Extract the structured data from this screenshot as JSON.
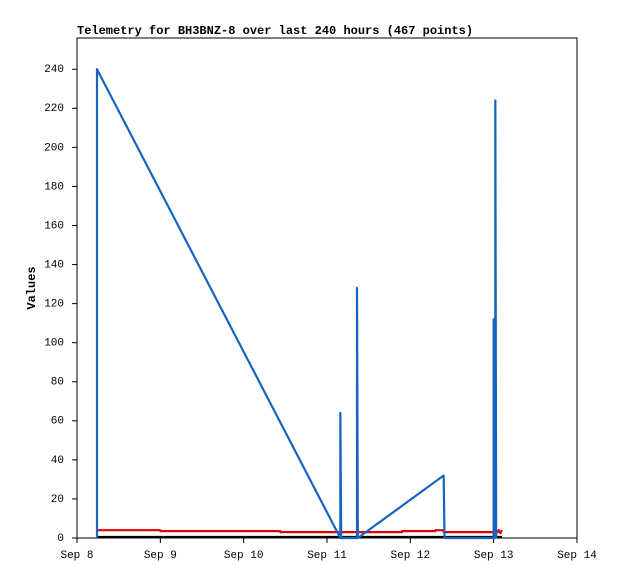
{
  "chart_data": {
    "type": "line",
    "title": "Telemetry for BH3BNZ-8 over last 240 hours (467 points)",
    "y_label": "Values",
    "xlim": [
      8,
      14
    ],
    "xticks": [
      {
        "value": 8,
        "label": "Sep 8"
      },
      {
        "value": 9,
        "label": "Sep 9"
      },
      {
        "value": 10,
        "label": "Sep 10"
      },
      {
        "value": 11,
        "label": "Sep 11"
      },
      {
        "value": 12,
        "label": "Sep 12"
      },
      {
        "value": 13,
        "label": "Sep 13"
      },
      {
        "value": 14,
        "label": "Sep 14"
      }
    ],
    "ylim": [
      0,
      256
    ],
    "yticks": [
      0,
      20,
      40,
      60,
      80,
      100,
      120,
      140,
      160,
      180,
      200,
      220,
      240
    ],
    "grid": false,
    "series": [
      {
        "color": "#000000",
        "x": [
          8.24,
          13.1
        ],
        "values": [
          0.5,
          0.5
        ]
      },
      {
        "color": "#e00000",
        "x": [
          8.24,
          9.0,
          9.0,
          10.44,
          10.44,
          11.9,
          11.9,
          12.3,
          12.3,
          12.4,
          12.4,
          13.05,
          13.06,
          13.08,
          13.1
        ],
        "values": [
          4,
          4,
          3.5,
          3.5,
          3,
          3,
          3.5,
          3.5,
          4,
          4,
          3,
          3,
          4,
          2.5,
          4
        ]
      },
      {
        "color": "#1565c0",
        "x": [
          8.24,
          8.24,
          11.16,
          11.16,
          11.17,
          11.36,
          11.36,
          11.37,
          12.4,
          12.41,
          13.0,
          13.0,
          13.02,
          13.02,
          13.03
        ],
        "values": [
          0,
          240,
          0,
          64,
          0,
          0,
          128,
          0,
          32,
          0,
          0,
          112,
          0,
          224,
          0
        ]
      }
    ]
  }
}
